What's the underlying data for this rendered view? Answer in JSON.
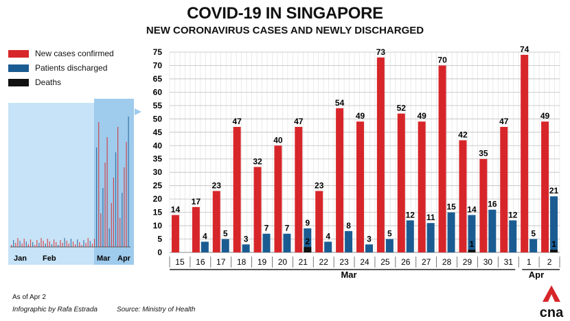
{
  "header": {
    "title": "COVID-19 IN SINGAPORE",
    "subtitle": "NEW CORONAVIRUS CASES AND NEWLY DISCHARGED"
  },
  "legend": [
    {
      "label": "New cases confirmed",
      "color": "#d7262a"
    },
    {
      "label": "Patients discharged",
      "color": "#1a5c92"
    },
    {
      "label": "Deaths",
      "color": "#111111"
    }
  ],
  "overview": {
    "month_labels": [
      "Jan",
      "Feb",
      "Mar",
      "Apr"
    ]
  },
  "footer": {
    "as_of": "As of Apr 2",
    "credit": "Infographic by Rafa Estrada",
    "source": "Source: Ministry of Health",
    "logo_text": "cna"
  },
  "chart_data": {
    "type": "bar",
    "categories": [
      "15",
      "16",
      "17",
      "18",
      "19",
      "20",
      "21",
      "22",
      "23",
      "24",
      "25",
      "26",
      "27",
      "28",
      "29",
      "30",
      "31",
      "1",
      "2"
    ],
    "month_groups": [
      {
        "label": "Mar",
        "categories": [
          "15",
          "16",
          "17",
          "18",
          "19",
          "20",
          "21",
          "22",
          "23",
          "24",
          "25",
          "26",
          "27",
          "28",
          "29",
          "30",
          "31"
        ]
      },
      {
        "label": "Apr",
        "categories": [
          "1",
          "2"
        ]
      }
    ],
    "series": [
      {
        "name": "New cases confirmed",
        "color": "#d7262a",
        "values": [
          14,
          17,
          23,
          47,
          32,
          40,
          47,
          23,
          54,
          49,
          73,
          52,
          49,
          70,
          42,
          35,
          47,
          74,
          49
        ]
      },
      {
        "name": "Patients discharged",
        "color": "#1a5c92",
        "values": [
          null,
          4,
          5,
          3,
          7,
          7,
          9,
          4,
          8,
          3,
          5,
          12,
          11,
          15,
          14,
          16,
          12,
          5,
          21
        ]
      },
      {
        "name": "Deaths",
        "color": "#111111",
        "values": [
          null,
          null,
          null,
          null,
          null,
          null,
          2,
          null,
          null,
          null,
          null,
          null,
          null,
          null,
          1,
          null,
          null,
          null,
          1
        ]
      }
    ],
    "y_ticks": [
      0,
      5,
      10,
      15,
      20,
      25,
      30,
      35,
      40,
      45,
      50,
      55,
      60,
      65,
      70,
      75
    ],
    "ylim": [
      0,
      75
    ],
    "grid": true
  }
}
